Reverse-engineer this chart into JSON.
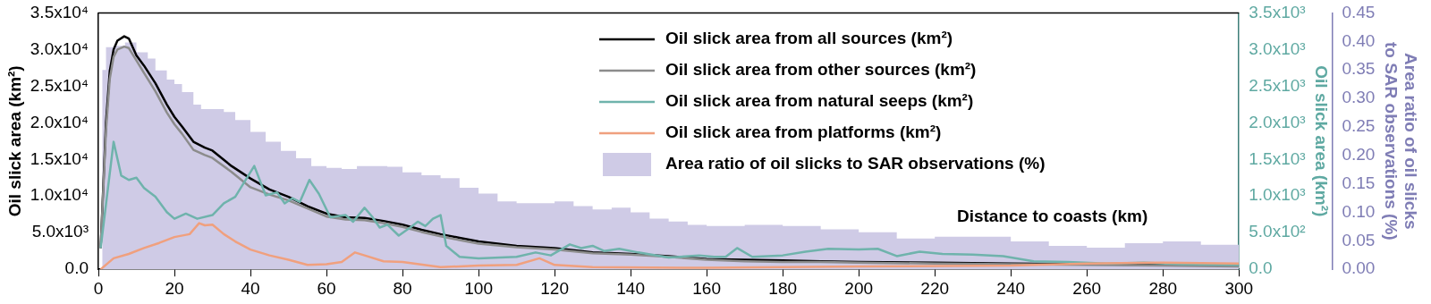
{
  "chart_data": {
    "type": "line",
    "xlabel": "Distance to coasts (km)",
    "ylabel": "Oil slick area (km²)",
    "y2label": "Oil slick area (km²)",
    "y3label": "Area ratio of oil slicks to SAR observations (%)",
    "xlim": [
      0,
      300
    ],
    "xticks": [
      0,
      20,
      40,
      60,
      80,
      100,
      120,
      140,
      160,
      180,
      200,
      220,
      240,
      260,
      280,
      300
    ],
    "ylim": [
      0,
      35000
    ],
    "yticks": [
      {
        "value": 0,
        "label": "0.0"
      },
      {
        "value": 5000,
        "label": "5.0x10³"
      },
      {
        "value": 10000,
        "label": "1.0x10⁴"
      },
      {
        "value": 15000,
        "label": "1.5x10⁴"
      },
      {
        "value": 20000,
        "label": "2.0x10⁴"
      },
      {
        "value": 25000,
        "label": "2.5x10⁴"
      },
      {
        "value": 30000,
        "label": "3.0x10⁴"
      },
      {
        "value": 35000,
        "label": "3.5x10⁴"
      }
    ],
    "y2lim": [
      0,
      3500
    ],
    "y2ticks": [
      {
        "value": 0,
        "label": "0.0"
      },
      {
        "value": 500,
        "label": "5.0x10²"
      },
      {
        "value": 1000,
        "label": "1.0x10³"
      },
      {
        "value": 1500,
        "label": "1.5x10³"
      },
      {
        "value": 2000,
        "label": "2.0x10³"
      },
      {
        "value": 2500,
        "label": "2.5x10³"
      },
      {
        "value": 3000,
        "label": "3.0x10³"
      },
      {
        "value": 3500,
        "label": "3.5x10³"
      }
    ],
    "y3lim": [
      0,
      0.45
    ],
    "y3ticks": [
      {
        "value": 0,
        "label": "0.00"
      },
      {
        "value": 0.05,
        "label": "0.05"
      },
      {
        "value": 0.1,
        "label": "0.10"
      },
      {
        "value": 0.15,
        "label": "0.15"
      },
      {
        "value": 0.2,
        "label": "0.20"
      },
      {
        "value": 0.25,
        "label": "0.25"
      },
      {
        "value": 0.3,
        "label": "0.30"
      },
      {
        "value": 0.35,
        "label": "0.35"
      },
      {
        "value": 0.4,
        "label": "0.40"
      },
      {
        "value": 0.45,
        "label": "0.45"
      }
    ],
    "legend": "top right",
    "grid": false,
    "series": [
      {
        "name": "Oil slick area from all sources (km²)",
        "color": "#000000",
        "x": [
          0.6,
          2,
          3,
          4,
          5,
          6.8,
          8,
          10,
          12,
          15,
          18,
          20,
          22,
          25,
          28,
          30,
          35,
          40,
          45,
          50,
          55,
          60,
          65,
          70,
          75,
          80,
          85,
          90,
          95,
          100,
          110,
          120,
          130,
          140,
          150,
          160,
          170,
          180,
          190,
          200,
          220,
          240,
          260,
          280,
          300
        ],
        "values": [
          2900,
          20000,
          27100,
          30000,
          31200,
          31800,
          31500,
          29200,
          27800,
          25400,
          22500,
          20800,
          19500,
          17400,
          16600,
          16200,
          14100,
          12400,
          10900,
          9900,
          8600,
          7600,
          7100,
          7000,
          6600,
          6100,
          5400,
          4800,
          4300,
          3800,
          3200,
          2900,
          2300,
          2100,
          1800,
          1400,
          1300,
          1200,
          1100,
          1000,
          900,
          800,
          700,
          600,
          500
        ]
      },
      {
        "name": "Oil slick area from other sources (km²)",
        "color": "#8c8c8c",
        "x": [
          0.6,
          2,
          3,
          4,
          5,
          6.8,
          8,
          10,
          12,
          15,
          18,
          20,
          22,
          25,
          28,
          30,
          35,
          40,
          45,
          50,
          55,
          60,
          65,
          70,
          75,
          80,
          85,
          90,
          95,
          100,
          110,
          120,
          130,
          140,
          150,
          160,
          170,
          180,
          190,
          200,
          220,
          240,
          260,
          280,
          300
        ],
        "values": [
          2900,
          19000,
          26000,
          29000,
          30000,
          30400,
          30200,
          28500,
          26800,
          24300,
          21400,
          19800,
          18500,
          16300,
          15600,
          15200,
          13300,
          11200,
          10200,
          9400,
          8300,
          7200,
          6800,
          6700,
          6300,
          5800,
          5100,
          4500,
          4000,
          3500,
          3000,
          2700,
          2200,
          2000,
          1700,
          1300,
          1100,
          1000,
          1000,
          900,
          800,
          700,
          600,
          500,
          400
        ]
      },
      {
        "name": "Oil slick area from natural seeps (km²)",
        "color": "#6fb3ac",
        "axis": "y2",
        "x": [
          0.6,
          4,
          6,
          8,
          10,
          12,
          15,
          18,
          20,
          23,
          26,
          30,
          33,
          36,
          41,
          44,
          47,
          49,
          51,
          53,
          55.5,
          58,
          61,
          65,
          67,
          70,
          72,
          74,
          76,
          79,
          82,
          84,
          86,
          88,
          90,
          91.5,
          95,
          100,
          110,
          115,
          119,
          124,
          127,
          130,
          133,
          137,
          142,
          150,
          158,
          162,
          165,
          168,
          172,
          180,
          186,
          192,
          200,
          205,
          210,
          216,
          222,
          230,
          238,
          246,
          255,
          265,
          275,
          285,
          300
        ],
        "values": [
          290,
          1740,
          1280,
          1220,
          1250,
          1110,
          990,
          780,
          690,
          760,
          690,
          740,
          900,
          990,
          1410,
          1010,
          1050,
          900,
          970,
          920,
          1220,
          1030,
          710,
          740,
          650,
          840,
          720,
          570,
          610,
          460,
          570,
          650,
          590,
          690,
          740,
          320,
          170,
          150,
          170,
          230,
          190,
          340,
          290,
          320,
          250,
          280,
          230,
          160,
          190,
          170,
          170,
          290,
          170,
          190,
          240,
          280,
          270,
          280,
          180,
          240,
          210,
          200,
          180,
          110,
          100,
          80,
          90,
          70,
          60
        ]
      },
      {
        "name": "Oil slick area from platforms (km²)",
        "color": "#f0a07e",
        "axis": "y2",
        "x": [
          0.6,
          4,
          8,
          12,
          16,
          20,
          24,
          26.5,
          28,
          30,
          33,
          36,
          40,
          45,
          50,
          55,
          60,
          64,
          67.5,
          70,
          75,
          80,
          90,
          100,
          110,
          116,
          120,
          130,
          160,
          200,
          240,
          260,
          280,
          300
        ],
        "values": [
          0,
          150,
          210,
          290,
          360,
          440,
          480,
          630,
          600,
          610,
          480,
          380,
          270,
          190,
          130,
          60,
          70,
          100,
          230,
          190,
          110,
          100,
          30,
          50,
          60,
          150,
          60,
          30,
          20,
          40,
          50,
          80,
          90,
          80
        ]
      },
      {
        "name": "Area ratio of oil slicks to SAR observations (%)",
        "type": "area",
        "color": "#cfcbe6",
        "axis": "y3",
        "x": [
          1,
          2,
          4,
          7,
          10,
          13,
          15,
          18,
          20,
          22,
          25,
          27,
          30,
          33,
          36,
          40,
          44,
          48,
          52,
          56,
          60,
          64,
          68,
          72,
          76,
          80,
          85,
          90,
          95,
          100,
          105,
          110,
          115,
          120,
          125,
          130,
          135,
          140,
          145,
          150,
          155,
          160,
          165,
          170,
          180,
          190,
          200,
          210,
          220,
          230,
          240,
          250,
          260,
          270,
          280,
          290,
          300
        ],
        "values": [
          0.35,
          0.39,
          0.392,
          0.398,
          0.381,
          0.37,
          0.349,
          0.333,
          0.325,
          0.311,
          0.289,
          0.281,
          0.281,
          0.276,
          0.262,
          0.241,
          0.224,
          0.208,
          0.195,
          0.181,
          0.178,
          0.176,
          0.181,
          0.181,
          0.18,
          0.17,
          0.165,
          0.16,
          0.143,
          0.133,
          0.119,
          0.116,
          0.116,
          0.119,
          0.111,
          0.105,
          0.108,
          0.1,
          0.089,
          0.084,
          0.078,
          0.076,
          0.076,
          0.078,
          0.076,
          0.07,
          0.065,
          0.054,
          0.057,
          0.057,
          0.049,
          0.041,
          0.038,
          0.046,
          0.049,
          0.043,
          0.046
        ]
      }
    ]
  }
}
